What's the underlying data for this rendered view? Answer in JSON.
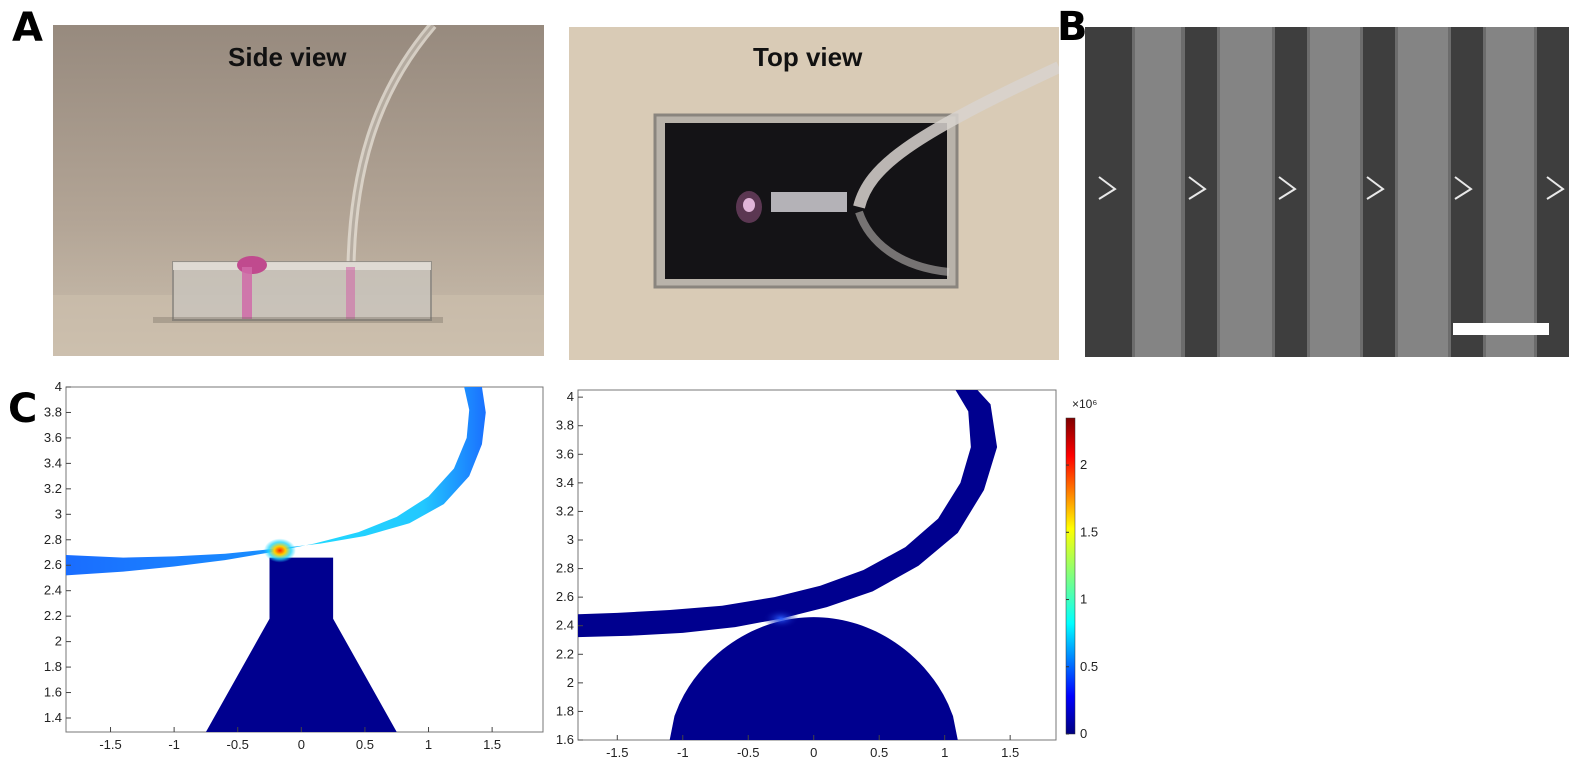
{
  "panels": {
    "A": "A",
    "B": "B",
    "C": "C"
  },
  "photos": {
    "side_view_label": "Side view",
    "top_view_label": "Top view"
  },
  "sem": {
    "scale_bar": "white bar, unlabeled"
  },
  "chart_data": [
    {
      "type": "heatmap",
      "title": "",
      "xlabel": "",
      "ylabel": "",
      "x_ticks": [
        "-1.5",
        "-1",
        "-0.5",
        "0",
        "0.5",
        "1",
        "1.5"
      ],
      "y_ticks": [
        "1.4",
        "1.6",
        "1.8",
        "2",
        "2.2",
        "2.4",
        "2.6",
        "2.8",
        "3",
        "3.2",
        "3.4",
        "3.6",
        "3.8",
        "4"
      ],
      "xlim": [
        -1.85,
        1.9
      ],
      "ylim": [
        1.29,
        4.0
      ],
      "colors": {
        "background": "#ffffff",
        "field_low": "#00008f",
        "band_main": "#1a8cff",
        "band_high": "#22d8ff",
        "hotspot": "#ff2000"
      },
      "max_field_location": [
        -0.2,
        2.7
      ]
    },
    {
      "type": "heatmap",
      "title": "",
      "xlabel": "",
      "ylabel": "",
      "x_ticks": [
        "-1.5",
        "-1",
        "-0.5",
        "0",
        "0.5",
        "1",
        "1.5"
      ],
      "y_ticks": [
        "1.6",
        "1.8",
        "2",
        "2.2",
        "2.4",
        "2.6",
        "2.8",
        "3",
        "3.2",
        "3.4",
        "3.6",
        "3.8",
        "4"
      ],
      "xlim": [
        -1.8,
        1.85
      ],
      "ylim": [
        1.6,
        4.05
      ],
      "colors": {
        "background": "#ffffff",
        "field_low": "#00008f",
        "glow": "#1a40ff"
      },
      "colorbar": {
        "multiplier": "×10⁶",
        "ticks": [
          "0",
          "0.5",
          "1",
          "1.5",
          "2"
        ],
        "range": [
          0,
          2.35
        ],
        "colormap": "jet"
      }
    }
  ]
}
